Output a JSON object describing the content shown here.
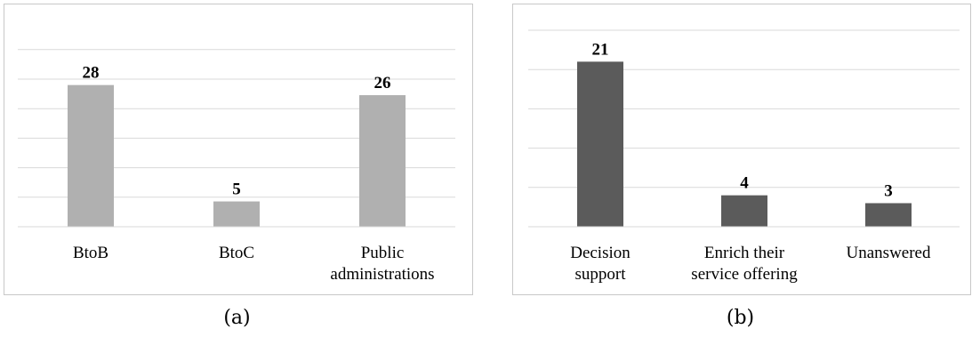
{
  "chart_data": [
    {
      "type": "bar",
      "categories": [
        [
          "BtoB"
        ],
        [
          "BtoC"
        ],
        [
          "Public",
          "administrations"
        ]
      ],
      "values": [
        28,
        5,
        26
      ],
      "ylim": [
        0,
        35
      ],
      "grid": true,
      "color": "#b0b0b0",
      "caption": "(a)"
    },
    {
      "type": "bar",
      "categories": [
        [
          "Decision",
          "support"
        ],
        [
          "Enrich their",
          "service offering"
        ],
        [
          "Unanswered"
        ]
      ],
      "values": [
        21,
        4,
        3
      ],
      "ylim": [
        0,
        25
      ],
      "grid": true,
      "color": "#5b5b5b",
      "caption": "(b)"
    }
  ]
}
